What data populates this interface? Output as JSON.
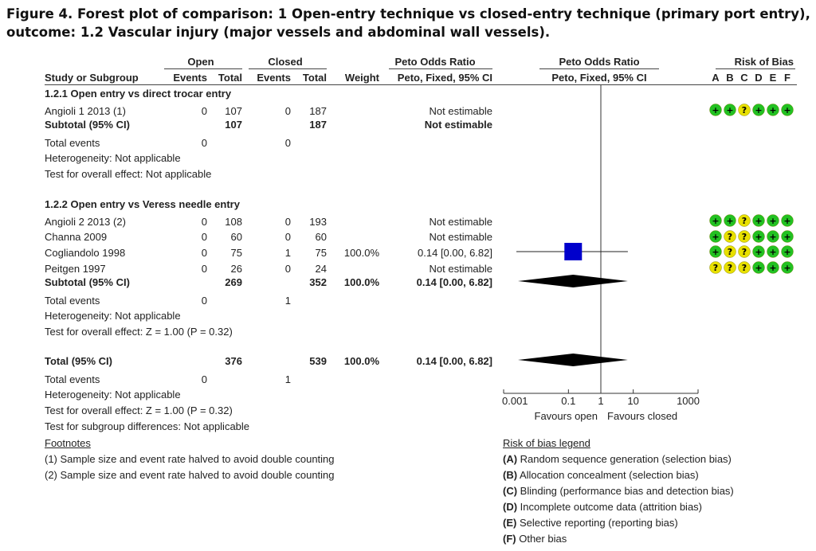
{
  "figure": {
    "title_line1": "Figure 4.  Forest plot of comparison: 1 Open-entry technique vs closed-entry technique (primary port entry),",
    "title_line2": "outcome: 1.2 Vascular injury (major vessels and abdominal wall vessels)."
  },
  "header": {
    "open": "Open",
    "closed": "Closed",
    "peto_or": "Peto Odds Ratio",
    "peto_or_plot": "Peto Odds Ratio",
    "risk_of_bias": "Risk of Bias",
    "study": "Study or Subgroup",
    "events_open": "Events",
    "total_open": "Total",
    "events_closed": "Events",
    "total_closed": "Total",
    "weight": "Weight",
    "method": "Peto, Fixed, 95% CI",
    "method_plot": "Peto, Fixed, 95% CI",
    "bias_letters": [
      "A",
      "B",
      "C",
      "D",
      "E",
      "F"
    ]
  },
  "groups": [
    {
      "heading": "1.2.1 Open entry vs direct trocar entry",
      "studies": [
        {
          "name": "Angioli 1 2013 (1)",
          "ev_open": "0",
          "tot_open": "107",
          "ev_closed": "0",
          "tot_closed": "187",
          "weight": "",
          "ci": "Not estimable",
          "bias": [
            "+",
            "+",
            "?",
            "+",
            "+",
            "+"
          ]
        }
      ],
      "subtotal": {
        "label": "Subtotal (95% CI)",
        "tot_open": "107",
        "tot_closed": "187",
        "weight": "",
        "ci": "Not estimable"
      },
      "total_events": {
        "label": "Total events",
        "open": "0",
        "closed": "0"
      },
      "heterogeneity": "Heterogeneity: Not applicable",
      "overall": "Test for overall effect: Not applicable"
    },
    {
      "heading": "1.2.2 Open entry vs Veress needle entry",
      "studies": [
        {
          "name": "Angioli 2 2013 (2)",
          "ev_open": "0",
          "tot_open": "108",
          "ev_closed": "0",
          "tot_closed": "193",
          "weight": "",
          "ci": "Not estimable",
          "bias": [
            "+",
            "+",
            "?",
            "+",
            "+",
            "+"
          ]
        },
        {
          "name": "Channa 2009",
          "ev_open": "0",
          "tot_open": "60",
          "ev_closed": "0",
          "tot_closed": "60",
          "weight": "",
          "ci": "Not estimable",
          "bias": [
            "+",
            "?",
            "?",
            "+",
            "+",
            "+"
          ]
        },
        {
          "name": "Cogliandolo 1998",
          "ev_open": "0",
          "tot_open": "75",
          "ev_closed": "1",
          "tot_closed": "75",
          "weight": "100.0%",
          "ci": "0.14 [0.00, 6.82]",
          "bias": [
            "+",
            "?",
            "?",
            "+",
            "+",
            "+"
          ]
        },
        {
          "name": "Peitgen 1997",
          "ev_open": "0",
          "tot_open": "26",
          "ev_closed": "0",
          "tot_closed": "24",
          "weight": "",
          "ci": "Not estimable",
          "bias": [
            "?",
            "?",
            "?",
            "+",
            "+",
            "+"
          ]
        }
      ],
      "subtotal": {
        "label": "Subtotal (95% CI)",
        "tot_open": "269",
        "tot_closed": "352",
        "weight": "100.0%",
        "ci": "0.14 [0.00, 6.82]"
      },
      "total_events": {
        "label": "Total events",
        "open": "0",
        "closed": "1"
      },
      "heterogeneity": "Heterogeneity: Not applicable",
      "overall": "Test for overall effect: Z = 1.00 (P = 0.32)"
    }
  ],
  "total": {
    "label": "Total (95% CI)",
    "tot_open": "376",
    "tot_closed": "539",
    "weight": "100.0%",
    "ci": "0.14 [0.00, 6.82]",
    "events_label": "Total events",
    "ev_open": "0",
    "ev_closed": "1",
    "heterogeneity": "Heterogeneity: Not applicable",
    "overall": "Test for overall effect: Z = 1.00 (P = 0.32)",
    "subgroup": "Test for subgroup differences: Not applicable"
  },
  "footnotes": {
    "heading": "Footnotes",
    "items": [
      "(1) Sample size and event rate halved to avoid double counting",
      "(2) Sample size and event rate halved to avoid double counting"
    ]
  },
  "bias_legend": {
    "heading": "Risk of bias legend",
    "items": [
      {
        "key": "(A)",
        "text": " Random sequence generation (selection bias)"
      },
      {
        "key": "(B)",
        "text": " Allocation concealment (selection bias)"
      },
      {
        "key": "(C)",
        "text": " Blinding (performance bias and detection bias)"
      },
      {
        "key": "(D)",
        "text": " Incomplete outcome data (attrition bias)"
      },
      {
        "key": "(E)",
        "text": " Selective reporting (reporting bias)"
      },
      {
        "key": "(F)",
        "text": " Other bias"
      }
    ]
  },
  "colors": {
    "low_risk": "#22c122",
    "unclear_risk": "#e8e000",
    "point": "#0000cc",
    "diamond": "#000000"
  },
  "chart_data": {
    "type": "forest",
    "title": "Forest plot of comparison: 1 Open-entry technique vs closed-entry technique (primary port entry), outcome: 1.2 Vascular injury (major vessels and abdominal wall vessels).",
    "scale": "log",
    "xlim": [
      0.001,
      1000
    ],
    "ticks": [
      0.001,
      0.1,
      1,
      10,
      1000
    ],
    "tick_labels": [
      "0.001",
      "0.1",
      "1",
      "10",
      "1000"
    ],
    "null_value": 1,
    "favours_left": "Favours open",
    "favours_right": "Favours closed",
    "estimates": [
      {
        "row": "Cogliandolo 1998",
        "kind": "study",
        "or": 0.14,
        "lower": 0.0,
        "upper": 6.82,
        "weight": 100.0
      },
      {
        "row": "Subtotal 1.2.2",
        "kind": "diamond",
        "or": 0.14,
        "lower": 0.0,
        "upper": 6.82
      },
      {
        "row": "Total",
        "kind": "diamond",
        "or": 0.14,
        "lower": 0.0,
        "upper": 6.82
      }
    ]
  }
}
